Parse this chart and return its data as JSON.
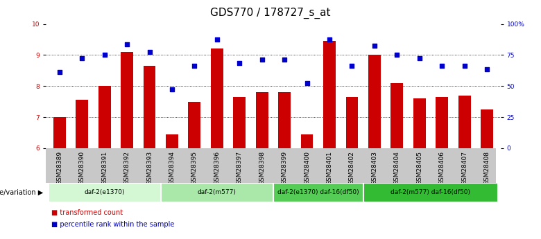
{
  "title": "GDS770 / 178727_s_at",
  "samples": [
    "GSM28389",
    "GSM28390",
    "GSM28391",
    "GSM28392",
    "GSM28393",
    "GSM28394",
    "GSM28395",
    "GSM28396",
    "GSM28397",
    "GSM28398",
    "GSM28399",
    "GSM28400",
    "GSM28401",
    "GSM28402",
    "GSM28403",
    "GSM28404",
    "GSM28405",
    "GSM28406",
    "GSM28407",
    "GSM28408"
  ],
  "bar_values": [
    7.0,
    7.55,
    8.0,
    9.1,
    8.65,
    6.45,
    7.5,
    9.2,
    7.65,
    7.8,
    7.8,
    6.45,
    9.45,
    7.65,
    9.0,
    8.1,
    7.6,
    7.65,
    7.7,
    7.25
  ],
  "dot_values": [
    8.45,
    8.9,
    9.0,
    9.35,
    9.1,
    7.9,
    8.65,
    9.5,
    8.75,
    8.85,
    8.85,
    8.1,
    9.5,
    8.65,
    9.3,
    9.0,
    8.9,
    8.65,
    8.65,
    8.55
  ],
  "bar_color": "#cc0000",
  "dot_color": "#0000cc",
  "ymin": 6,
  "ymax": 10,
  "yticks": [
    6,
    7,
    8,
    9,
    10
  ],
  "y2ticks_val": [
    0,
    25,
    50,
    75,
    100
  ],
  "y2ticks_label": [
    "0",
    "25",
    "50",
    "75",
    "100%"
  ],
  "gridlines": [
    7,
    8,
    9
  ],
  "groups": [
    {
      "label": "daf-2(e1370)",
      "start": 0,
      "end": 5,
      "color": "#d4f7d4"
    },
    {
      "label": "daf-2(m577)",
      "start": 5,
      "end": 10,
      "color": "#aae8aa"
    },
    {
      "label": "daf-2(e1370) daf-16(df50)",
      "start": 10,
      "end": 14,
      "color": "#55cc55"
    },
    {
      "label": "daf-2(m577) daf-16(df50)",
      "start": 14,
      "end": 20,
      "color": "#33bb33"
    }
  ],
  "group_header": "genotype/variation",
  "legend_bar_label": "transformed count",
  "legend_dot_label": "percentile rank within the sample",
  "bar_width": 0.55,
  "title_fontsize": 11,
  "tick_fontsize": 6.5,
  "label_fontsize": 7.5
}
